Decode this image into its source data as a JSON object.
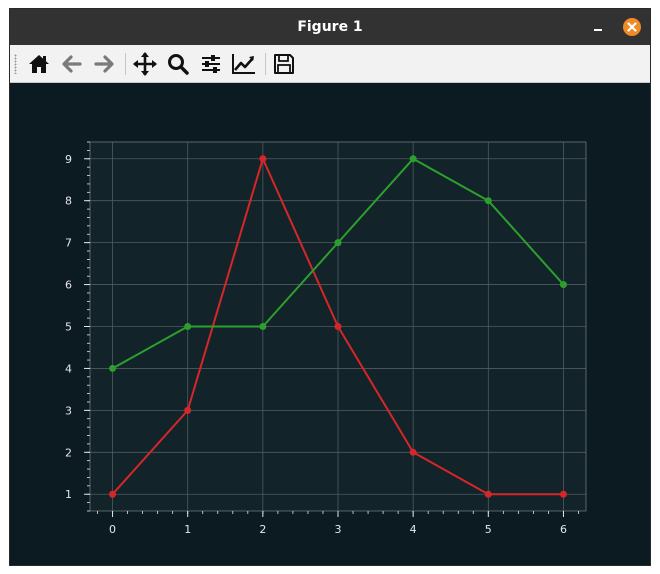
{
  "window": {
    "title": "Figure 1"
  },
  "toolbar": {
    "items": [
      {
        "name": "home-icon"
      },
      {
        "name": "back-icon"
      },
      {
        "name": "forward-icon"
      },
      {
        "name": "pan-icon"
      },
      {
        "name": "zoom-icon"
      },
      {
        "name": "configure-subplots-icon"
      },
      {
        "name": "edit-axis-icon"
      },
      {
        "name": "save-icon"
      }
    ]
  },
  "colors": {
    "background": "#0c1b22",
    "axes_face": "#13232a",
    "grid": "#4f5c61",
    "text": "#e6e6e6",
    "red_series": "#d62728",
    "green_series": "#2ca02c",
    "close_button": "#f08a24"
  },
  "chart_data": {
    "type": "line",
    "x": [
      0,
      1,
      2,
      3,
      4,
      5,
      6
    ],
    "series": [
      {
        "color": "#d62728",
        "values": [
          1,
          3,
          9,
          5,
          2,
          1,
          1
        ]
      },
      {
        "color": "#2ca02c",
        "values": [
          4,
          5,
          5,
          7,
          9,
          8,
          6
        ]
      }
    ],
    "xlim": [
      -0.3,
      6.3
    ],
    "ylim": [
      0.6,
      9.4
    ],
    "xticks": [
      0,
      1,
      2,
      3,
      4,
      5,
      6
    ],
    "yticks": [
      1,
      2,
      3,
      4,
      5,
      6,
      7,
      8,
      9
    ],
    "title": "",
    "xlabel": "",
    "ylabel": "",
    "grid": true,
    "markers": true
  }
}
